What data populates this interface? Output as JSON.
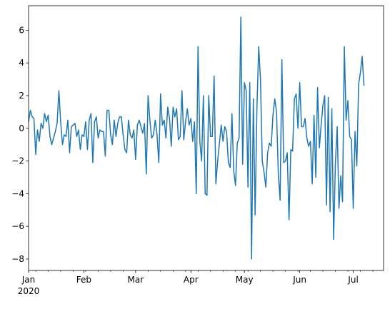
{
  "chart_data": {
    "type": "line",
    "title": "",
    "xlabel": "",
    "ylabel": "",
    "x_start": "2020-01-01",
    "x_frequency": "daily",
    "xlim": [
      "2020-01-01",
      "2020-07-18"
    ],
    "ylim": [
      -8.7,
      7.5
    ],
    "grid": false,
    "legend": "none",
    "line_color": "#1f77b4",
    "x_ticks": [
      {
        "date": "2020-01-01",
        "label": "Jan",
        "sublabel": "2020"
      },
      {
        "date": "2020-02-01",
        "label": "Feb"
      },
      {
        "date": "2020-03-01",
        "label": "Mar"
      },
      {
        "date": "2020-04-01",
        "label": "Apr"
      },
      {
        "date": "2020-05-01",
        "label": "May"
      },
      {
        "date": "2020-06-01",
        "label": "Jun"
      },
      {
        "date": "2020-07-01",
        "label": "Jul"
      }
    ],
    "y_ticks": [
      {
        "value": 6,
        "label": "6"
      },
      {
        "value": 4,
        "label": "4"
      },
      {
        "value": 2,
        "label": "2"
      },
      {
        "value": 0,
        "label": "0"
      },
      {
        "value": -2,
        "label": "−2"
      },
      {
        "value": -4,
        "label": "−4"
      },
      {
        "value": -6,
        "label": "−6"
      },
      {
        "value": -8,
        "label": "−8"
      }
    ],
    "values": [
      0.4,
      1.1,
      0.7,
      0.6,
      -1.6,
      -0.1,
      -0.8,
      0.3,
      0.0,
      0.9,
      0.4,
      0.8,
      -0.5,
      -1.0,
      -0.6,
      -0.2,
      0.3,
      2.3,
      0.4,
      -1.0,
      -0.4,
      -0.5,
      0.5,
      -1.5,
      0.1,
      0.2,
      0.3,
      -0.5,
      -0.1,
      -1.3,
      -0.4,
      -0.5,
      0.4,
      -1.3,
      0.5,
      0.9,
      -2.1,
      0.4,
      0.7,
      -0.6,
      -0.1,
      -0.2,
      -0.2,
      -1.7,
      1.1,
      1.1,
      -0.4,
      -1.0,
      0.5,
      -0.5,
      0.3,
      0.7,
      0.7,
      -0.4,
      -1.3,
      -1.5,
      0.5,
      -0.4,
      -0.6,
      -0.1,
      -1.9,
      0.2,
      0.5,
      0.1,
      -0.3,
      0.3,
      -2.8,
      2.0,
      0.5,
      -0.6,
      -0.4,
      0.5,
      -0.4,
      -2.1,
      2.1,
      0.2,
      0.5,
      -0.6,
      1.3,
      0.6,
      -1.1,
      1.3,
      0.7,
      1.2,
      -0.7,
      -0.5,
      2.3,
      -0.7,
      0.4,
      1.2,
      0.2,
      0.6,
      -0.8,
      0.4,
      -4.0,
      5.0,
      -0.8,
      -2.0,
      2.0,
      -4.0,
      -4.1,
      2.0,
      -0.5,
      -0.5,
      3.2,
      -3.4,
      -2.0,
      -0.9,
      0.2,
      -0.8,
      0.1,
      -0.2,
      -2.1,
      -2.4,
      0.9,
      -2.6,
      -3.5,
      -0.9,
      -0.6,
      6.8,
      -2.2,
      2.8,
      2.3,
      -3.6,
      2.8,
      -8.0,
      1.8,
      -5.3,
      1.2,
      5.0,
      3.0,
      -2.0,
      -2.7,
      -3.6,
      -1.5,
      -0.9,
      -1.1,
      0.8,
      1.8,
      1.0,
      -2.8,
      -4.4,
      4.2,
      -2.1,
      -2.0,
      -1.5,
      -5.6,
      -1.3,
      -1.4,
      1.8,
      2.1,
      0.0,
      2.8,
      0.1,
      0.1,
      0.6,
      -0.6,
      -1.1,
      -0.8,
      -3.4,
      0.8,
      -3.0,
      2.5,
      -1.2,
      0.2,
      1.4,
      2.0,
      -4.7,
      1.9,
      -5.1,
      1.2,
      -6.8,
      -2.1,
      0.1,
      -4.9,
      -2.9,
      -4.5,
      5.0,
      0.5,
      1.7,
      -0.5,
      -0.7,
      -4.9,
      -0.2,
      -2.3,
      2.7,
      3.4,
      4.4,
      2.6
    ]
  }
}
